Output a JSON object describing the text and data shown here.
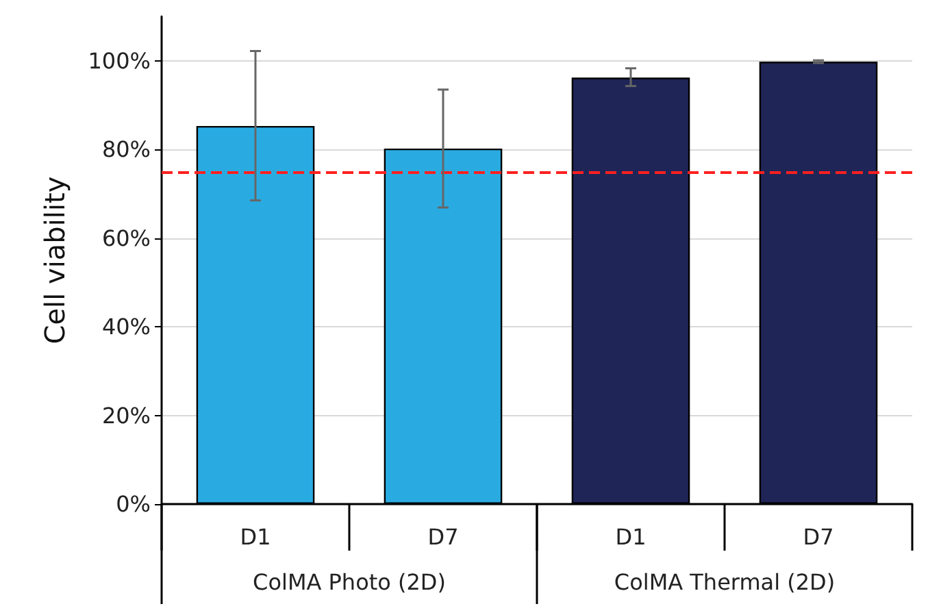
{
  "chart_data": {
    "type": "bar",
    "ylabel": "Cell viability",
    "categories": [
      "D1",
      "D7",
      "D1",
      "D7"
    ],
    "values": [
      85.3,
      80.2,
      96.2,
      99.8
    ],
    "colors": [
      "#29abe2",
      "#29abe2",
      "#1f2557",
      "#1f2557"
    ],
    "errors": [
      [
        68.5,
        102.2
      ],
      [
        66.9,
        93.5
      ],
      [
        94.3,
        98.3
      ],
      0.3
    ],
    "ylim": [
      0,
      110
    ],
    "yticks": [
      {
        "value": 0,
        "label": "0%"
      },
      {
        "value": 20,
        "label": "20%"
      },
      {
        "value": 40,
        "label": "40%"
      },
      {
        "value": 60,
        "label": "60%"
      },
      {
        "value": 80,
        "label": "80%"
      },
      {
        "value": 100,
        "label": "100%"
      }
    ],
    "grid": "y",
    "ref_lines": [
      {
        "axis": "y",
        "value": 75,
        "color": "#ff2020",
        "line_style": "dashed"
      }
    ],
    "annotations": [
      "ColMA Photo (2D)",
      "ColMA Thermal (2D)"
    ]
  }
}
